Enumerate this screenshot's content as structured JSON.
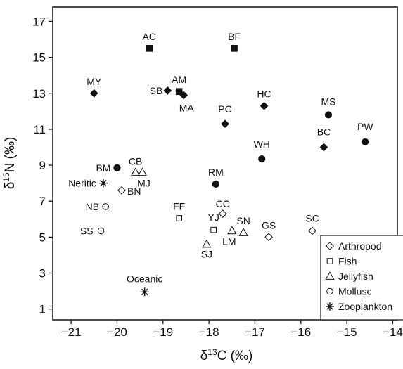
{
  "chart_data": {
    "type": "scatter",
    "xlabel": "δ13C (‰)",
    "ylabel": "δ15N (‰)",
    "xlim": [
      -21.4,
      -13.9
    ],
    "ylim": [
      0.4,
      17.8
    ],
    "xticks": [
      -21,
      -20,
      -19,
      -18,
      -17,
      -16,
      -15,
      -14
    ],
    "yticks": [
      1,
      3,
      5,
      7,
      9,
      11,
      13,
      15,
      17
    ],
    "grid": false,
    "legend_position": "bottom-right",
    "series": [
      {
        "name": "Arthropod",
        "marker": "diamond-open",
        "points": [
          {
            "label": "BN",
            "x": -19.9,
            "y": 7.6
          },
          {
            "label": "CC",
            "x": -17.7,
            "y": 6.3
          },
          {
            "label": "GS",
            "x": -16.7,
            "y": 5.0
          },
          {
            "label": "SC",
            "x": -15.75,
            "y": 5.35
          }
        ]
      },
      {
        "name": "Fish",
        "marker": "square-open",
        "points": [
          {
            "label": "FF",
            "x": -18.65,
            "y": 6.05
          },
          {
            "label": "YJ",
            "x": -17.9,
            "y": 5.4
          }
        ]
      },
      {
        "name": "Jellyfish",
        "marker": "triangle-open",
        "points": [
          {
            "label": "CB",
            "x": -19.6,
            "y": 8.6
          },
          {
            "label": "MJ",
            "x": -19.45,
            "y": 8.6
          },
          {
            "label": "SJ",
            "x": -18.05,
            "y": 4.6
          },
          {
            "label": "LM",
            "x": -17.5,
            "y": 5.35
          },
          {
            "label": "SN",
            "x": -17.25,
            "y": 5.25
          }
        ]
      },
      {
        "name": "Mollusc",
        "marker": "circle-open",
        "points": [
          {
            "label": "NB",
            "x": -20.25,
            "y": 6.7
          },
          {
            "label": "SS",
            "x": -20.35,
            "y": 5.35
          }
        ]
      },
      {
        "name": "Zooplankton",
        "marker": "asterisk",
        "points": [
          {
            "label": "Neritic",
            "x": -20.3,
            "y": 8.0
          },
          {
            "label": "Oceanic",
            "x": -19.4,
            "y": 1.95
          }
        ]
      },
      {
        "marker": "diamond-filled",
        "points": [
          {
            "label": "MY",
            "x": -20.5,
            "y": 13.0
          },
          {
            "label": "SB",
            "x": -18.9,
            "y": 13.15
          },
          {
            "label": "MA",
            "x": -18.55,
            "y": 12.9
          },
          {
            "label": "HC",
            "x": -16.8,
            "y": 12.3
          },
          {
            "label": "PC",
            "x": -17.65,
            "y": 11.3
          },
          {
            "label": "BC",
            "x": -15.5,
            "y": 10.0
          }
        ]
      },
      {
        "marker": "square-filled",
        "points": [
          {
            "label": "AC",
            "x": -19.3,
            "y": 15.5
          },
          {
            "label": "BF",
            "x": -17.45,
            "y": 15.5
          },
          {
            "label": "AM",
            "x": -18.65,
            "y": 13.1
          }
        ]
      },
      {
        "marker": "circle-filled",
        "points": [
          {
            "label": "BM",
            "x": -20.0,
            "y": 8.85
          },
          {
            "label": "RM",
            "x": -17.85,
            "y": 7.95
          },
          {
            "label": "WH",
            "x": -16.85,
            "y": 9.35
          },
          {
            "label": "MS",
            "x": -15.4,
            "y": 11.8
          },
          {
            "label": "PW",
            "x": -14.6,
            "y": 10.3
          }
        ]
      }
    ]
  }
}
